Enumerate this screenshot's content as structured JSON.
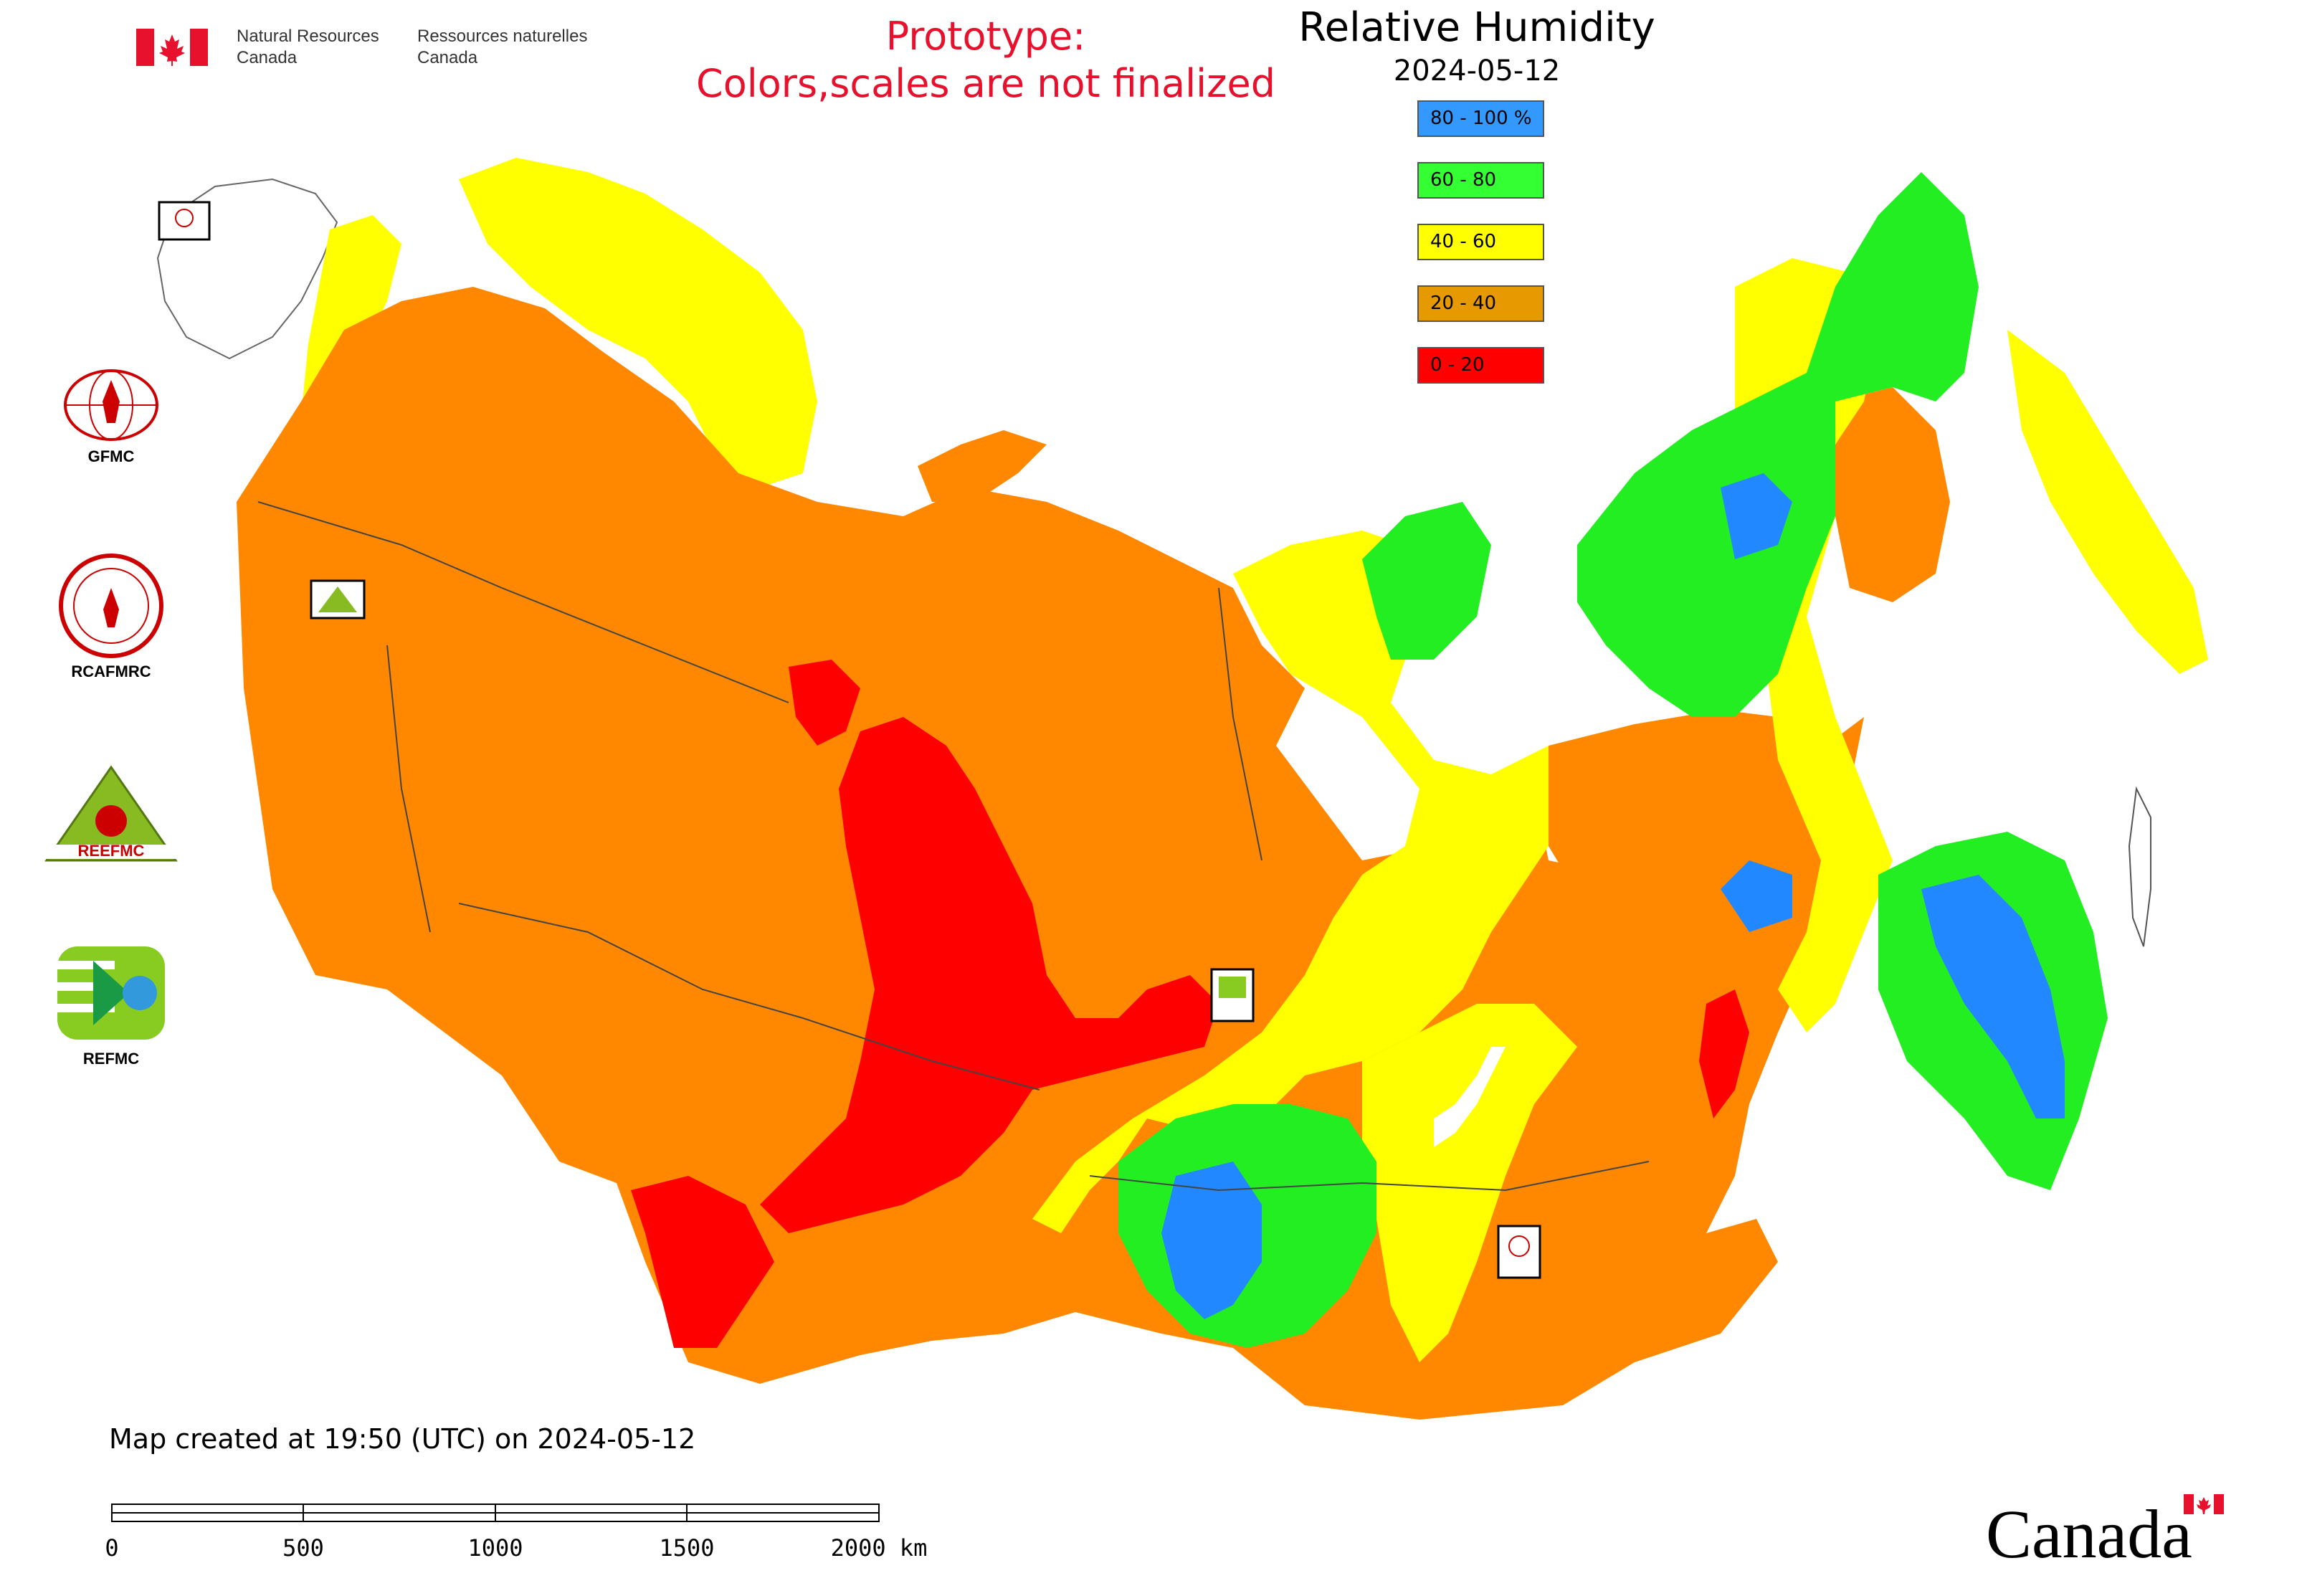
{
  "header": {
    "dept_en_line1": "Natural Resources",
    "dept_en_line2": "Canada",
    "dept_fr_line1": "Ressources naturelles",
    "dept_fr_line2": "Canada"
  },
  "prototype": {
    "line1": "Prototype:",
    "line2": "Colors,scales are not finalized"
  },
  "map": {
    "title": "Relative Humidity",
    "date": "2024-05-12",
    "legend": [
      {
        "label": "80 - 100 %",
        "color": "#3399ff"
      },
      {
        "label": "60 - 80",
        "color": "#33ff33"
      },
      {
        "label": "40 - 60",
        "color": "#ffff00"
      },
      {
        "label": "20 - 40",
        "color": "#e69900"
      },
      {
        "label": "0 - 20",
        "color": "#ff0000"
      }
    ],
    "map_colors": {
      "orange": "#ff8800",
      "red": "#ff0000",
      "yellow": "#ffff00",
      "green": "#22ee22",
      "blue": "#2288ff"
    }
  },
  "centers": {
    "gfmc": "GFMC",
    "rcafmrc": "RCAFMRC",
    "reefmc": "REEFMC",
    "refmc": "REFMC"
  },
  "footer": {
    "created": "Map created at 19:50 (UTC) on 2024-05-12",
    "scale_ticks": [
      "0",
      "500",
      "1000",
      "1500",
      "2000 km"
    ],
    "wordmark": "Canada"
  }
}
